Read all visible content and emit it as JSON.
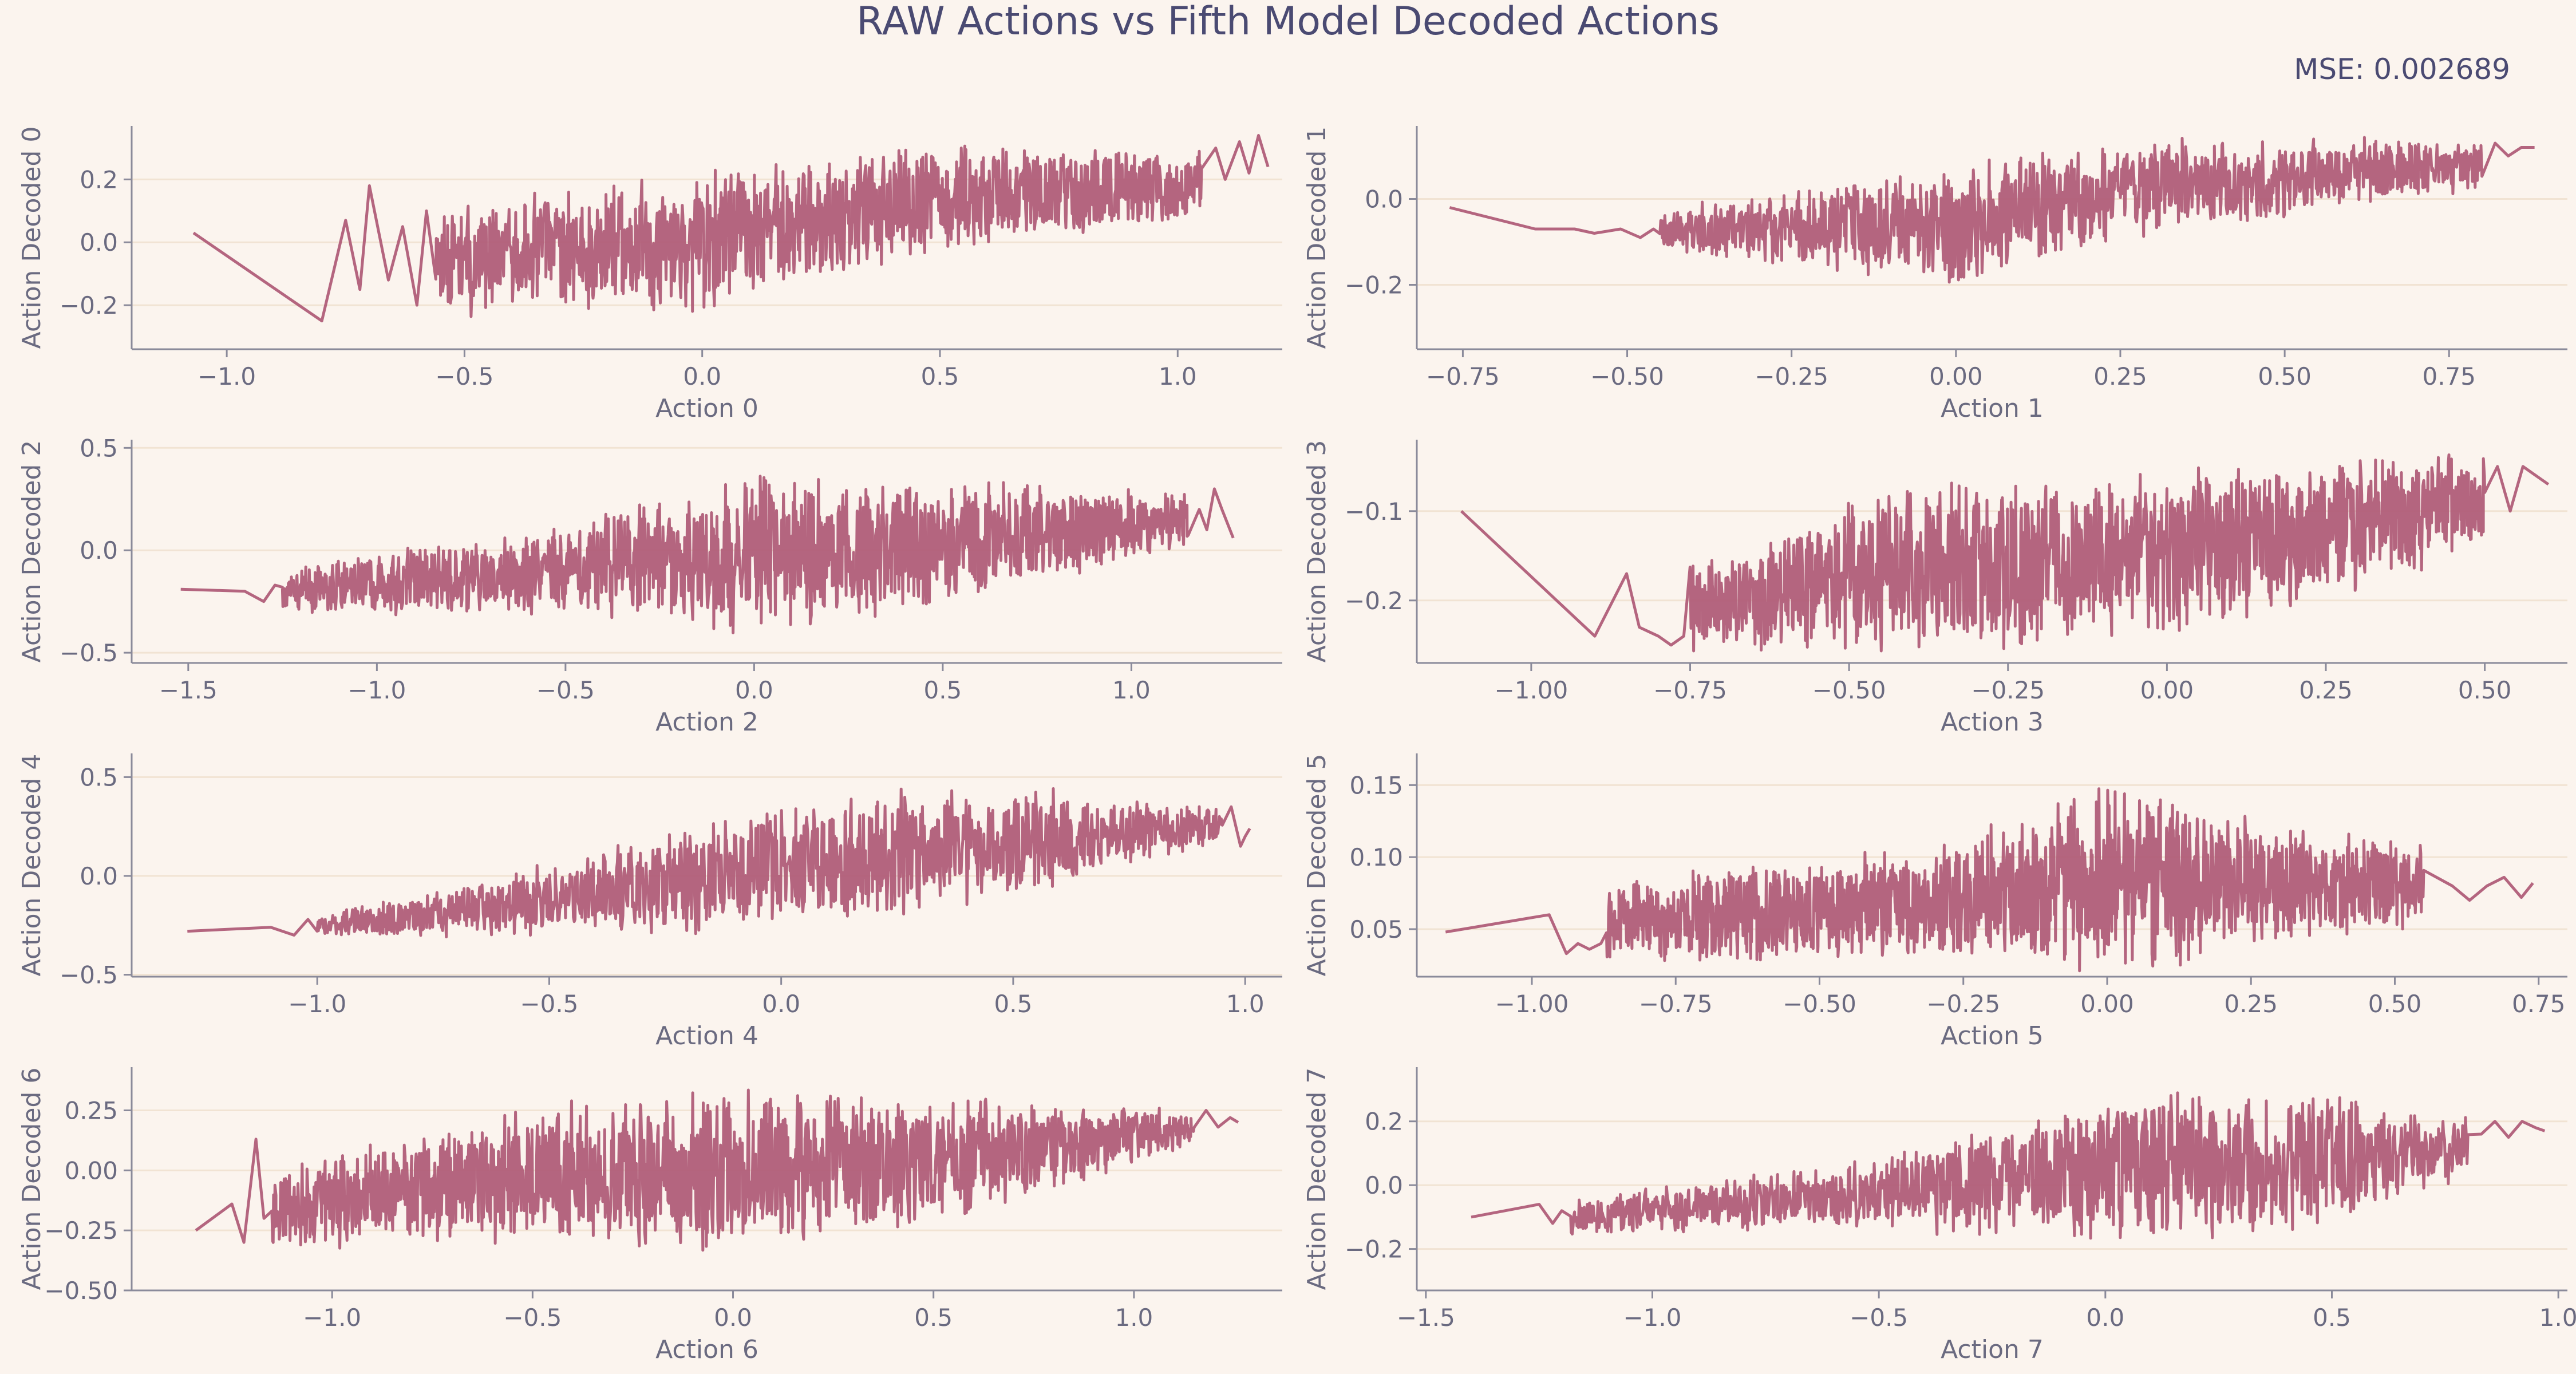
{
  "figure": {
    "title": "RAW Actions vs Fifth Model Decoded Actions",
    "mse_text": "MSE: 0.002689",
    "line_color": "#b05d78",
    "background": "#fbf4ee"
  },
  "chart_data": [
    {
      "type": "line",
      "xlabel": "Action 0",
      "ylabel": "Action Decoded 0",
      "xlim": [
        -1.2,
        1.22
      ],
      "ylim": [
        -0.34,
        0.37
      ],
      "xticks": [
        -1.0,
        -0.5,
        0.0,
        0.5,
        1.0
      ],
      "xtick_labels": [
        "−1.0",
        "−0.5",
        "0.0",
        "0.5",
        "1.0"
      ],
      "yticks": [
        -0.2,
        0.0,
        0.2
      ],
      "ytick_labels": [
        "−0.2",
        "0.0",
        "0.2"
      ],
      "grid": "horizontal",
      "seed": 11,
      "sparse": [
        [
          -1.07,
          0.03
        ],
        [
          -0.8,
          -0.25
        ],
        [
          -0.75,
          0.07
        ],
        [
          -0.72,
          -0.15
        ],
        [
          -0.7,
          0.18
        ],
        [
          -0.66,
          -0.12
        ],
        [
          -0.63,
          0.05
        ],
        [
          -0.6,
          -0.2
        ],
        [
          -0.58,
          0.1
        ]
      ],
      "dense_x": [
        -0.56,
        1.05
      ],
      "trend_knots": [
        [
          -0.56,
          -0.06
        ],
        [
          0.0,
          0.0
        ],
        [
          0.5,
          0.14
        ],
        [
          1.05,
          0.18
        ]
      ],
      "spread_knots": [
        [
          -0.56,
          0.18
        ],
        [
          0.0,
          0.24
        ],
        [
          0.5,
          0.18
        ],
        [
          1.05,
          0.12
        ]
      ],
      "dense_n": 1300,
      "tail": [
        [
          1.08,
          0.3
        ],
        [
          1.1,
          0.2
        ],
        [
          1.13,
          0.32
        ],
        [
          1.15,
          0.22
        ],
        [
          1.17,
          0.34
        ],
        [
          1.19,
          0.24
        ]
      ]
    },
    {
      "type": "line",
      "xlabel": "Action 1",
      "ylabel": "Action Decoded 1",
      "xlim": [
        -0.82,
        0.93
      ],
      "ylim": [
        -0.35,
        0.17
      ],
      "xticks": [
        -0.75,
        -0.5,
        -0.25,
        0.0,
        0.25,
        0.5,
        0.75
      ],
      "xtick_labels": [
        "−0.75",
        "−0.50",
        "−0.25",
        "0.00",
        "0.25",
        "0.50",
        "0.75"
      ],
      "yticks": [
        -0.2,
        0.0
      ],
      "ytick_labels": [
        "−0.2",
        "0.0"
      ],
      "grid": "horizontal",
      "seed": 23,
      "sparse": [
        [
          -0.77,
          -0.02
        ],
        [
          -0.64,
          -0.07
        ],
        [
          -0.58,
          -0.07
        ],
        [
          -0.55,
          -0.08
        ],
        [
          -0.51,
          -0.07
        ],
        [
          -0.48,
          -0.09
        ],
        [
          -0.46,
          -0.07
        ]
      ],
      "dense_x": [
        -0.45,
        0.8
      ],
      "trend_knots": [
        [
          -0.45,
          -0.07
        ],
        [
          0.0,
          -0.06
        ],
        [
          0.3,
          0.03
        ],
        [
          0.8,
          0.08
        ]
      ],
      "spread_knots": [
        [
          -0.45,
          0.05
        ],
        [
          0.0,
          0.15
        ],
        [
          0.3,
          0.12
        ],
        [
          0.8,
          0.06
        ]
      ],
      "dense_n": 1200,
      "tail": [
        [
          0.82,
          0.13
        ],
        [
          0.84,
          0.1
        ],
        [
          0.86,
          0.12
        ],
        [
          0.88,
          0.12
        ]
      ]
    },
    {
      "type": "line",
      "xlabel": "Action 2",
      "ylabel": "Action Decoded 2",
      "xlim": [
        -1.65,
        1.4
      ],
      "ylim": [
        -0.55,
        0.54
      ],
      "xticks": [
        -1.5,
        -1.0,
        -0.5,
        0.0,
        0.5,
        1.0
      ],
      "xtick_labels": [
        "−1.5",
        "−1.0",
        "−0.5",
        "0.0",
        "0.5",
        "1.0"
      ],
      "yticks": [
        -0.5,
        0.0,
        0.5
      ],
      "ytick_labels": [
        "−0.5",
        "0.0",
        "0.5"
      ],
      "grid": "horizontal",
      "seed": 37,
      "sparse": [
        [
          -1.52,
          -0.19
        ],
        [
          -1.35,
          -0.2
        ],
        [
          -1.3,
          -0.25
        ],
        [
          -1.27,
          -0.17
        ]
      ],
      "dense_x": [
        -1.25,
        1.15
      ],
      "trend_knots": [
        [
          -1.25,
          -0.2
        ],
        [
          -0.6,
          -0.1
        ],
        [
          0.0,
          -0.02
        ],
        [
          0.6,
          0.05
        ],
        [
          1.15,
          0.15
        ]
      ],
      "spread_knots": [
        [
          -1.25,
          0.12
        ],
        [
          -0.6,
          0.22
        ],
        [
          0.0,
          0.42
        ],
        [
          0.6,
          0.3
        ],
        [
          1.15,
          0.15
        ]
      ],
      "dense_n": 1500,
      "tail": [
        [
          1.18,
          0.2
        ],
        [
          1.2,
          0.1
        ],
        [
          1.22,
          0.3
        ],
        [
          1.24,
          0.2
        ],
        [
          1.27,
          0.06
        ]
      ]
    },
    {
      "type": "line",
      "xlabel": "Action 3",
      "ylabel": "Action Decoded 3",
      "xlim": [
        -1.18,
        0.63
      ],
      "ylim": [
        -0.27,
        -0.02
      ],
      "xticks": [
        -1.0,
        -0.75,
        -0.5,
        -0.25,
        0.0,
        0.25,
        0.5
      ],
      "xtick_labels": [
        "−1.00",
        "−0.75",
        "−0.50",
        "−0.25",
        "0.00",
        "0.25",
        "0.50"
      ],
      "yticks": [
        -0.2,
        -0.1
      ],
      "ytick_labels": [
        "−0.2",
        "−0.1"
      ],
      "grid": "horizontal",
      "seed": 41,
      "sparse": [
        [
          -1.11,
          -0.1
        ],
        [
          -0.9,
          -0.24
        ],
        [
          -0.85,
          -0.17
        ],
        [
          -0.83,
          -0.23
        ],
        [
          -0.8,
          -0.24
        ],
        [
          -0.78,
          -0.25
        ],
        [
          -0.76,
          -0.24
        ]
      ],
      "dense_x": [
        -0.75,
        0.5
      ],
      "trend_knots": [
        [
          -0.75,
          -0.21
        ],
        [
          -0.4,
          -0.16
        ],
        [
          0.0,
          -0.15
        ],
        [
          0.5,
          -0.09
        ]
      ],
      "spread_knots": [
        [
          -0.75,
          0.05
        ],
        [
          -0.4,
          0.1
        ],
        [
          0.0,
          0.1
        ],
        [
          0.5,
          0.06
        ]
      ],
      "dense_n": 1400,
      "tail": [
        [
          0.52,
          -0.05
        ],
        [
          0.54,
          -0.1
        ],
        [
          0.56,
          -0.05
        ],
        [
          0.58,
          -0.06
        ],
        [
          0.6,
          -0.07
        ]
      ]
    },
    {
      "type": "line",
      "xlabel": "Action 4",
      "ylabel": "Action Decoded 4",
      "xlim": [
        -1.4,
        1.08
      ],
      "ylim": [
        -0.51,
        0.62
      ],
      "xticks": [
        -1.0,
        -0.5,
        0.0,
        0.5,
        1.0
      ],
      "xtick_labels": [
        "−1.0",
        "−0.5",
        "0.0",
        "0.5",
        "1.0"
      ],
      "yticks": [
        -0.5,
        0.0,
        0.5
      ],
      "ytick_labels": [
        "−0.5",
        "0.0",
        "0.5"
      ],
      "grid": "horizontal",
      "seed": 53,
      "sparse": [
        [
          -1.28,
          -0.28
        ],
        [
          -1.1,
          -0.26
        ],
        [
          -1.05,
          -0.3
        ],
        [
          -1.02,
          -0.22
        ]
      ],
      "dense_x": [
        -1.0,
        0.95
      ],
      "trend_knots": [
        [
          -1.0,
          -0.25
        ],
        [
          -0.5,
          -0.12
        ],
        [
          0.0,
          0.05
        ],
        [
          0.5,
          0.18
        ],
        [
          0.95,
          0.25
        ]
      ],
      "spread_knots": [
        [
          -1.0,
          0.06
        ],
        [
          -0.5,
          0.2
        ],
        [
          0.0,
          0.35
        ],
        [
          0.5,
          0.3
        ],
        [
          0.95,
          0.1
        ]
      ],
      "dense_n": 1300,
      "tail": [
        [
          0.97,
          0.35
        ],
        [
          0.99,
          0.15
        ],
        [
          1.0,
          0.2
        ],
        [
          1.01,
          0.24
        ]
      ]
    },
    {
      "type": "line",
      "xlabel": "Action 5",
      "ylabel": "Action Decoded 5",
      "xlim": [
        -1.2,
        0.8
      ],
      "ylim": [
        0.017,
        0.172
      ],
      "xticks": [
        -1.0,
        -0.75,
        -0.5,
        -0.25,
        0.0,
        0.25,
        0.5,
        0.75
      ],
      "xtick_labels": [
        "−1.00",
        "−0.75",
        "−0.50",
        "−0.25",
        "0.00",
        "0.25",
        "0.50",
        "0.75"
      ],
      "yticks": [
        0.05,
        0.1,
        0.15
      ],
      "ytick_labels": [
        "0.05",
        "0.10",
        "0.15"
      ],
      "grid": "horizontal",
      "seed": 67,
      "sparse": [
        [
          -1.15,
          0.048
        ],
        [
          -0.97,
          0.06
        ],
        [
          -0.94,
          0.033
        ],
        [
          -0.92,
          0.04
        ],
        [
          -0.9,
          0.036
        ],
        [
          -0.88,
          0.04
        ]
      ],
      "dense_x": [
        -0.87,
        0.55
      ],
      "trend_knots": [
        [
          -0.87,
          0.055
        ],
        [
          -0.3,
          0.07
        ],
        [
          0.0,
          0.085
        ],
        [
          0.55,
          0.08
        ]
      ],
      "spread_knots": [
        [
          -0.87,
          0.03
        ],
        [
          -0.3,
          0.04
        ],
        [
          0.0,
          0.07
        ],
        [
          0.55,
          0.03
        ]
      ],
      "dense_n": 1500,
      "tail": [
        [
          0.6,
          0.08
        ],
        [
          0.63,
          0.07
        ],
        [
          0.66,
          0.08
        ],
        [
          0.69,
          0.086
        ],
        [
          0.72,
          0.072
        ],
        [
          0.74,
          0.082
        ]
      ]
    },
    {
      "type": "line",
      "xlabel": "Action 6",
      "ylabel": "Action Decoded 6",
      "xlim": [
        -1.5,
        1.37
      ],
      "ylim": [
        -0.5,
        0.43
      ],
      "xticks": [
        -1.0,
        -0.5,
        0.0,
        0.5,
        1.0
      ],
      "xtick_labels": [
        "−1.0",
        "−0.5",
        "0.0",
        "0.5",
        "1.0"
      ],
      "yticks": [
        -0.5,
        -0.25,
        0.0,
        0.25
      ],
      "ytick_labels": [
        "−0.50",
        "−0.25",
        "0.00",
        "0.25"
      ],
      "grid": "horizontal",
      "seed": 79,
      "sparse": [
        [
          -1.34,
          -0.25
        ],
        [
          -1.25,
          -0.14
        ],
        [
          -1.22,
          -0.3
        ],
        [
          -1.19,
          0.13
        ],
        [
          -1.17,
          -0.2
        ]
      ],
      "dense_x": [
        -1.15,
        1.15
      ],
      "trend_knots": [
        [
          -1.15,
          -0.15
        ],
        [
          -0.5,
          -0.02
        ],
        [
          0.0,
          0.0
        ],
        [
          0.6,
          0.06
        ],
        [
          1.15,
          0.18
        ]
      ],
      "spread_knots": [
        [
          -1.15,
          0.18
        ],
        [
          -0.5,
          0.3
        ],
        [
          0.0,
          0.36
        ],
        [
          0.6,
          0.25
        ],
        [
          1.15,
          0.08
        ]
      ],
      "dense_n": 1500,
      "tail": [
        [
          1.18,
          0.25
        ],
        [
          1.21,
          0.18
        ],
        [
          1.24,
          0.22
        ],
        [
          1.26,
          0.2
        ]
      ]
    },
    {
      "type": "line",
      "xlabel": "Action 7",
      "ylabel": "Action Decoded 7",
      "xlim": [
        -1.52,
        1.02
      ],
      "ylim": [
        -0.33,
        0.37
      ],
      "xticks": [
        -1.5,
        -1.0,
        -0.5,
        0.0,
        0.5,
        1.0
      ],
      "xtick_labels": [
        "−1.5",
        "−1.0",
        "−0.5",
        "0.0",
        "0.5",
        "1.0"
      ],
      "yticks": [
        -0.2,
        0.0,
        0.2
      ],
      "ytick_labels": [
        "−0.2",
        "0.0",
        "0.2"
      ],
      "grid": "horizontal",
      "seed": 91,
      "sparse": [
        [
          -1.4,
          -0.1
        ],
        [
          -1.25,
          -0.06
        ],
        [
          -1.22,
          -0.12
        ],
        [
          -1.2,
          -0.08
        ]
      ],
      "dense_x": [
        -1.18,
        0.8
      ],
      "trend_knots": [
        [
          -1.18,
          -0.1
        ],
        [
          -0.5,
          -0.02
        ],
        [
          0.0,
          0.05
        ],
        [
          0.5,
          0.08
        ],
        [
          0.8,
          0.12
        ]
      ],
      "spread_knots": [
        [
          -1.18,
          0.06
        ],
        [
          -0.5,
          0.12
        ],
        [
          0.0,
          0.26
        ],
        [
          0.5,
          0.22
        ],
        [
          0.8,
          0.1
        ]
      ],
      "dense_n": 1300,
      "tail": [
        [
          0.83,
          0.16
        ],
        [
          0.86,
          0.2
        ],
        [
          0.89,
          0.15
        ],
        [
          0.92,
          0.2
        ],
        [
          0.95,
          0.18
        ],
        [
          0.97,
          0.17
        ]
      ]
    }
  ]
}
